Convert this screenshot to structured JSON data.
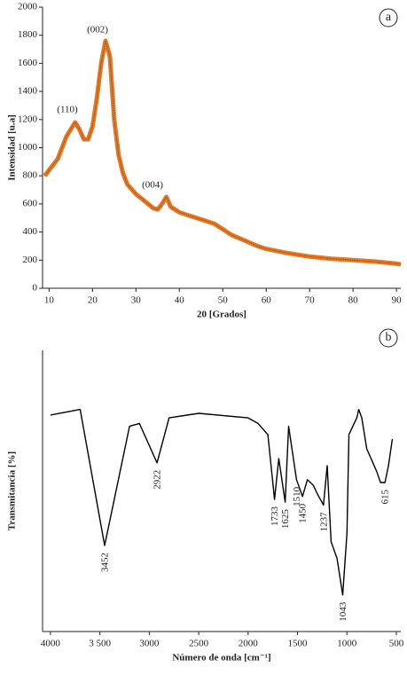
{
  "chart_data": [
    {
      "type": "line",
      "panel": "a",
      "xlabel": "20 [Grados]",
      "ylabel": "Intensidad [u.a]",
      "annotations": [
        "(110)",
        "(002)",
        "(004)"
      ],
      "x": [
        9,
        12,
        14,
        16,
        17,
        18,
        19,
        20,
        21,
        22,
        23,
        24,
        25,
        26,
        27,
        28,
        30,
        32,
        34,
        35,
        36,
        37,
        38,
        40,
        42,
        44,
        46,
        48,
        50,
        52,
        55,
        58,
        60,
        65,
        70,
        75,
        80,
        85,
        90,
        91
      ],
      "series": [
        {
          "color": "#e87722",
          "values": [
            800,
            920,
            1080,
            1180,
            1130,
            1060,
            1060,
            1150,
            1350,
            1600,
            1760,
            1650,
            1200,
            950,
            820,
            740,
            670,
            620,
            570,
            560,
            600,
            650,
            580,
            540,
            520,
            500,
            480,
            460,
            420,
            380,
            340,
            300,
            280,
            250,
            225,
            210,
            200,
            190,
            175,
            170
          ]
        }
      ],
      "xlim": [
        8.5,
        91
      ],
      "xticks": [
        10,
        20,
        30,
        40,
        50,
        60,
        70,
        80,
        90
      ],
      "ylim": [
        0,
        2000
      ],
      "yticks": [
        0,
        200,
        400,
        600,
        800,
        1000,
        1200,
        1400,
        1600,
        1800,
        2000
      ]
    },
    {
      "type": "line",
      "panel": "b",
      "xlabel": "Número de onda [cm⁻¹]",
      "ylabel": "Transmitancia [%]",
      "peak_labels": [
        3452,
        2922,
        1733,
        1625,
        1510,
        1450,
        1237,
        1043,
        615
      ],
      "x": [
        4000,
        3700,
        3452,
        3200,
        3100,
        2922,
        2800,
        2500,
        2000,
        1900,
        1800,
        1733,
        1690,
        1625,
        1590,
        1510,
        1480,
        1450,
        1400,
        1340,
        1300,
        1237,
        1200,
        1160,
        1100,
        1043,
        1000,
        980,
        940,
        900,
        880,
        850,
        800,
        700,
        660,
        615,
        580,
        540
      ],
      "series": [
        {
          "color": "#000000",
          "values": [
            77,
            79,
            30.6,
            73,
            74,
            60,
            76,
            77.6,
            76,
            74,
            70,
            47,
            61.5,
            46,
            73,
            54,
            51,
            48,
            54,
            52,
            49,
            45,
            59,
            32,
            26,
            13,
            35,
            70,
            73,
            76,
            79,
            76,
            65,
            57,
            53,
            53,
            59,
            68.5
          ]
        }
      ],
      "xlim": [
        4080,
        455
      ],
      "xticks": [
        4000,
        {
          "value": 3500,
          "label": "3 500"
        },
        3000,
        2500,
        2000,
        1500,
        1000,
        500
      ],
      "ylim": [
        0,
        100
      ]
    }
  ]
}
